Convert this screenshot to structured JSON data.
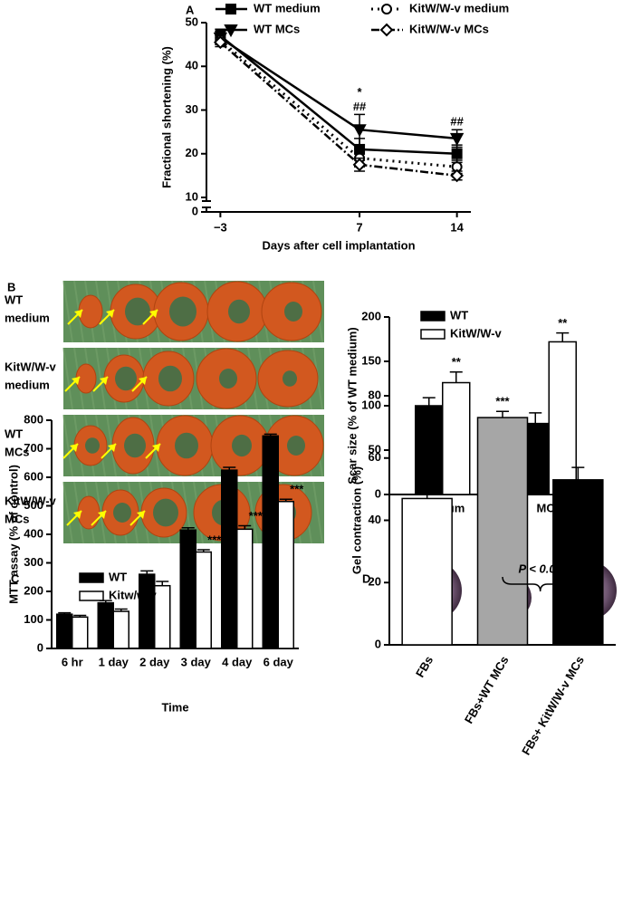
{
  "chart_data": [
    {
      "type": "line",
      "panel": "A",
      "xlabel": "Days after cell implantation",
      "ylabel": "Fractional shortening (%)",
      "x": [
        -3,
        7,
        14
      ],
      "xlim": [
        -4,
        15
      ],
      "xticks": [
        {
          "value": -3,
          "label": "−3"
        },
        7,
        14
      ],
      "ylim": [
        10,
        50
      ],
      "yticks": [
        0,
        10,
        20,
        30,
        40,
        50
      ],
      "axis_break": true,
      "series": [
        {
          "name": "WT medium",
          "color": "#000000",
          "marker": "square",
          "marker_fill": "#000000",
          "line_style": "solid",
          "values": [
            47,
            21,
            20
          ],
          "errors": [
            1.5,
            2.5,
            2
          ]
        },
        {
          "name": "WT MCs",
          "color": "#000000",
          "marker": "triangle-down",
          "marker_fill": "#000000",
          "line_style": "solid",
          "values": [
            46.5,
            25.5,
            23.5
          ],
          "errors": [
            1.5,
            3.5,
            2
          ]
        },
        {
          "name": "KitW/W-v medium",
          "color": "#000000",
          "marker": "circle",
          "marker_fill": "#ffffff",
          "line_style": "dotted",
          "values": [
            46,
            19,
            17
          ],
          "errors": [
            1,
            2,
            1.5
          ]
        },
        {
          "name": "KitW/W-v MCs",
          "color": "#000000",
          "marker": "diamond",
          "marker_fill": "#ffffff",
          "line_style": "dashdot",
          "values": [
            45.5,
            17.5,
            15
          ],
          "errors": [
            1,
            1.5,
            1
          ]
        }
      ],
      "annotations": [
        {
          "text": "##",
          "x": 7
        },
        {
          "text": "*",
          "x": 7
        },
        {
          "text": "##",
          "x": 14
        }
      ]
    },
    {
      "type": "bar",
      "panel": "B",
      "ylabel": "Scar size (% of WT medium)",
      "categories": [
        "Medium",
        "MCs"
      ],
      "ylim": [
        0,
        200
      ],
      "yticks": [
        0,
        50,
        100,
        150,
        200
      ],
      "series": [
        {
          "name": "WT",
          "color": "#000000",
          "values": [
            100,
            80
          ],
          "errors": [
            9,
            12
          ]
        },
        {
          "name": "KitW/W-v",
          "color": "#ffffff",
          "values": [
            126,
            172
          ],
          "errors": [
            12,
            10
          ]
        }
      ],
      "annotations": [
        {
          "text": "**",
          "category": "Medium",
          "series": "KitW/W-v"
        },
        {
          "text": "**",
          "category": "MCs",
          "series": "KitW/W-v"
        }
      ]
    },
    {
      "type": "bar",
      "panel": "C",
      "ylabel": "MTT assay (% of control)",
      "xlabel": "Time",
      "categories": [
        "6 hr",
        "1 day",
        "2 day",
        "3 day",
        "4 day",
        "6 day"
      ],
      "ylim": [
        0,
        800
      ],
      "yticks": [
        0,
        100,
        200,
        300,
        400,
        500,
        600,
        700,
        800
      ],
      "series": [
        {
          "name": "WT",
          "color": "#000000",
          "values": [
            120,
            160,
            260,
            415,
            625,
            745
          ],
          "errors": [
            5,
            8,
            12,
            8,
            10,
            6
          ]
        },
        {
          "name": "Kitw/w-v",
          "color": "#ffffff",
          "values": [
            110,
            130,
            220,
            338,
            418,
            515
          ],
          "errors": [
            6,
            8,
            15,
            8,
            12,
            8
          ]
        }
      ],
      "annotations": [
        {
          "text": "***",
          "category": "3 day",
          "series": "Kitw/w-v"
        },
        {
          "text": "***",
          "category": "4 day",
          "series": "Kitw/w-v"
        },
        {
          "text": "***",
          "category": "6 day",
          "series": "Kitw/w-v"
        }
      ]
    },
    {
      "type": "bar",
      "panel": "D",
      "ylabel": "Gel contraction (%)",
      "categories": [
        "FBs",
        "FBs+WT MCs",
        "FBs+ KitW/W-v MCs"
      ],
      "values": [
        47,
        73,
        53
      ],
      "errors": [
        6,
        2,
        4
      ],
      "colors": [
        "#ffffff",
        "#a6a6a6",
        "#000000"
      ],
      "ylim": [
        0,
        80
      ],
      "yticks": [
        0,
        20,
        40,
        60,
        80
      ],
      "annotations": [
        {
          "text": "***",
          "category": "FBs+WT MCs"
        },
        {
          "text": "P < 0.01",
          "between": [
            "FBs+WT MCs",
            "FBs+ KitW/W-v MCs"
          ]
        }
      ]
    }
  ],
  "photo": {
    "rows": [
      [
        "WT",
        "medium"
      ],
      [
        "KitW/W-v",
        "medium"
      ],
      [
        "WT",
        "MCs"
      ],
      [
        "KitW/W-v",
        "MCs"
      ]
    ]
  }
}
